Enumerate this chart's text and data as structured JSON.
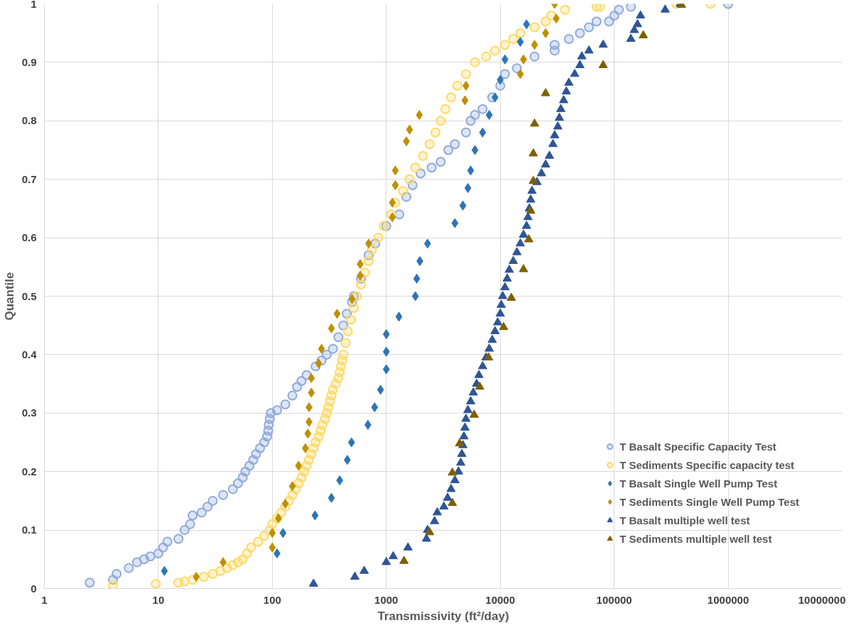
{
  "chart_data": {
    "type": "scatter",
    "xlabel": "Transmissivity (ft²/day)",
    "ylabel": "Quantile",
    "log": "x",
    "grid": true,
    "legend": "bottom right",
    "xlim": [
      1,
      10000000
    ],
    "xticks": [
      1,
      10,
      100,
      1000,
      10000,
      100000,
      1000000,
      10000000
    ],
    "ylim": [
      0,
      1
    ],
    "yticks": [
      0,
      0.1,
      0.2,
      0.3,
      0.4,
      0.5,
      0.6,
      0.7,
      0.8,
      0.9,
      1
    ],
    "series": [
      {
        "name": "T Basalt Specific Capacity Test",
        "color": "#8faadc",
        "marker": "circle",
        "x": [
          2.5,
          4,
          4.3,
          5.5,
          6.5,
          7.5,
          8.5,
          10,
          11,
          12,
          15,
          17,
          19,
          20,
          24,
          27,
          30,
          37,
          45,
          50,
          55,
          58,
          63,
          68,
          72,
          78,
          85,
          90,
          92,
          93,
          95,
          97,
          110,
          130,
          150,
          165,
          180,
          200,
          240,
          270,
          300,
          340,
          380,
          420,
          450,
          500,
          520,
          600,
          700,
          800,
          1000,
          1300,
          1500,
          1700,
          2000,
          2500,
          3000,
          3500,
          4000,
          5000,
          5500,
          6000,
          7000,
          8500,
          10000,
          11000,
          14000,
          20000,
          30000,
          30000,
          40000,
          50000,
          60000,
          70000,
          90000,
          100000,
          110000,
          140000,
          1000000
        ],
        "values": [
          0.01,
          0.015,
          0.025,
          0.035,
          0.045,
          0.05,
          0.055,
          0.06,
          0.07,
          0.08,
          0.085,
          0.1,
          0.11,
          0.125,
          0.13,
          0.14,
          0.15,
          0.16,
          0.17,
          0.18,
          0.19,
          0.2,
          0.21,
          0.22,
          0.23,
          0.24,
          0.25,
          0.26,
          0.27,
          0.28,
          0.29,
          0.3,
          0.305,
          0.315,
          0.33,
          0.345,
          0.355,
          0.365,
          0.38,
          0.39,
          0.4,
          0.41,
          0.43,
          0.45,
          0.47,
          0.49,
          0.5,
          0.53,
          0.57,
          0.59,
          0.62,
          0.64,
          0.67,
          0.69,
          0.71,
          0.72,
          0.73,
          0.75,
          0.76,
          0.78,
          0.8,
          0.81,
          0.82,
          0.84,
          0.86,
          0.88,
          0.89,
          0.91,
          0.92,
          0.93,
          0.94,
          0.95,
          0.96,
          0.97,
          0.97,
          0.98,
          0.99,
          0.995,
          1.0
        ]
      },
      {
        "name": "T Sediments Specific capacity test",
        "color": "#ffd966",
        "marker": "circle",
        "x": [
          4,
          9.5,
          15,
          17,
          20,
          25,
          30,
          35,
          40,
          45,
          50,
          55,
          60,
          65,
          75,
          85,
          95,
          100,
          110,
          120,
          130,
          140,
          150,
          160,
          170,
          180,
          190,
          200,
          210,
          220,
          230,
          240,
          255,
          265,
          275,
          290,
          300,
          310,
          320,
          330,
          340,
          360,
          380,
          390,
          400,
          410,
          420,
          440,
          460,
          490,
          520,
          550,
          600,
          650,
          700,
          750,
          850,
          950,
          1100,
          1200,
          1400,
          1600,
          1800,
          2100,
          2400,
          2700,
          3000,
          3300,
          3700,
          4200,
          5000,
          6000,
          7500,
          9000,
          11000,
          13000,
          15000,
          20000,
          25000,
          28000,
          37000,
          70000,
          75000,
          350000,
          700000
        ],
        "values": [
          0.006,
          0.008,
          0.01,
          0.012,
          0.015,
          0.02,
          0.025,
          0.03,
          0.035,
          0.04,
          0.045,
          0.05,
          0.06,
          0.07,
          0.08,
          0.09,
          0.1,
          0.11,
          0.12,
          0.13,
          0.14,
          0.15,
          0.16,
          0.17,
          0.18,
          0.19,
          0.2,
          0.21,
          0.22,
          0.23,
          0.24,
          0.25,
          0.26,
          0.27,
          0.28,
          0.29,
          0.3,
          0.31,
          0.32,
          0.33,
          0.34,
          0.35,
          0.36,
          0.37,
          0.38,
          0.39,
          0.4,
          0.42,
          0.44,
          0.46,
          0.48,
          0.5,
          0.52,
          0.54,
          0.56,
          0.58,
          0.6,
          0.62,
          0.64,
          0.66,
          0.68,
          0.7,
          0.72,
          0.74,
          0.76,
          0.78,
          0.8,
          0.82,
          0.84,
          0.86,
          0.88,
          0.9,
          0.91,
          0.92,
          0.93,
          0.94,
          0.95,
          0.96,
          0.97,
          0.98,
          0.99,
          0.995,
          0.995,
          1.0,
          1.0
        ]
      },
      {
        "name": "T Basalt Single Well Pump Test",
        "color": "#2e75b6",
        "marker": "diamond",
        "x": [
          11.3,
          110,
          124,
          237,
          330,
          390,
          455,
          495,
          690,
          790,
          890,
          1000,
          1000,
          1000,
          1290,
          1800,
          1850,
          1970,
          2300,
          4000,
          4700,
          5200,
          5500,
          6000,
          7000,
          8000,
          9000,
          10000,
          11000,
          15000,
          17000
        ],
        "values": [
          0.03,
          0.06,
          0.095,
          0.125,
          0.155,
          0.185,
          0.22,
          0.25,
          0.28,
          0.31,
          0.34,
          0.375,
          0.405,
          0.435,
          0.465,
          0.5,
          0.53,
          0.56,
          0.59,
          0.625,
          0.655,
          0.685,
          0.715,
          0.75,
          0.78,
          0.81,
          0.84,
          0.87,
          0.905,
          0.935,
          0.965
        ]
      },
      {
        "name": "T Sediments Single Well Pump Test",
        "color": "#bf9000",
        "marker": "diamond",
        "x": [
          21.5,
          37,
          100,
          100,
          113,
          130,
          150,
          170,
          195,
          205,
          210,
          210,
          220,
          220,
          255,
          270,
          330,
          370,
          500,
          590,
          590,
          700,
          1130,
          1130,
          1200,
          1200,
          1500,
          1600,
          1950,
          4900,
          5000,
          15000,
          16000,
          20000,
          25000,
          31000,
          30000
        ],
        "values": [
          0.02,
          0.045,
          0.07,
          0.095,
          0.12,
          0.145,
          0.175,
          0.21,
          0.24,
          0.265,
          0.285,
          0.31,
          0.335,
          0.36,
          0.385,
          0.41,
          0.445,
          0.47,
          0.495,
          0.535,
          0.555,
          0.59,
          0.635,
          0.66,
          0.69,
          0.715,
          0.765,
          0.785,
          0.81,
          0.835,
          0.86,
          0.88,
          0.905,
          0.93,
          0.95,
          0.975,
          1.0
        ]
      },
      {
        "name": "T Basalt multiple well test",
        "color": "#2f5597",
        "marker": "triangle",
        "x": [
          230,
          530,
          640,
          1000,
          1150,
          1550,
          2250,
          2300,
          2650,
          2800,
          3200,
          3450,
          3700,
          4000,
          4300,
          4500,
          4600,
          4700,
          4800,
          4900,
          5000,
          5200,
          5500,
          5800,
          6200,
          6500,
          7000,
          7500,
          8000,
          8500,
          9000,
          9500,
          10000,
          10200,
          10500,
          11000,
          11500,
          12000,
          13000,
          14000,
          15000,
          16000,
          17000,
          17500,
          18000,
          18500,
          19000,
          21000,
          23000,
          25000,
          27000,
          29000,
          30000,
          32000,
          33000,
          34000,
          36000,
          38000,
          40000,
          45000,
          50000,
          52000,
          60000,
          80000,
          140000,
          150000,
          160000,
          170000,
          280000,
          380000
        ],
        "values": [
          0.008,
          0.02,
          0.03,
          0.045,
          0.055,
          0.07,
          0.085,
          0.1,
          0.115,
          0.13,
          0.14,
          0.155,
          0.17,
          0.185,
          0.2,
          0.215,
          0.23,
          0.245,
          0.26,
          0.275,
          0.29,
          0.305,
          0.32,
          0.335,
          0.35,
          0.365,
          0.38,
          0.395,
          0.41,
          0.425,
          0.44,
          0.455,
          0.47,
          0.485,
          0.5,
          0.515,
          0.53,
          0.545,
          0.56,
          0.575,
          0.59,
          0.605,
          0.62,
          0.635,
          0.65,
          0.665,
          0.68,
          0.695,
          0.71,
          0.725,
          0.74,
          0.76,
          0.775,
          0.79,
          0.805,
          0.82,
          0.835,
          0.85,
          0.865,
          0.88,
          0.895,
          0.91,
          0.92,
          0.93,
          0.94,
          0.955,
          0.965,
          0.98,
          0.99,
          1.0
        ]
      },
      {
        "name": "T Sediments multiple well test",
        "color": "#7f6000",
        "marker": "triangle",
        "x": [
          1430,
          2400,
          3800,
          3800,
          4400,
          5900,
          6600,
          7900,
          10700,
          12500,
          16000,
          17800,
          18500,
          19500,
          19500,
          20000,
          25000,
          80000,
          180000,
          390000
        ],
        "values": [
          0.047,
          0.096,
          0.146,
          0.198,
          0.248,
          0.297,
          0.345,
          0.395,
          0.447,
          0.497,
          0.546,
          0.597,
          0.646,
          0.697,
          0.744,
          0.795,
          0.847,
          0.895,
          0.946,
          0.998
        ]
      }
    ]
  }
}
